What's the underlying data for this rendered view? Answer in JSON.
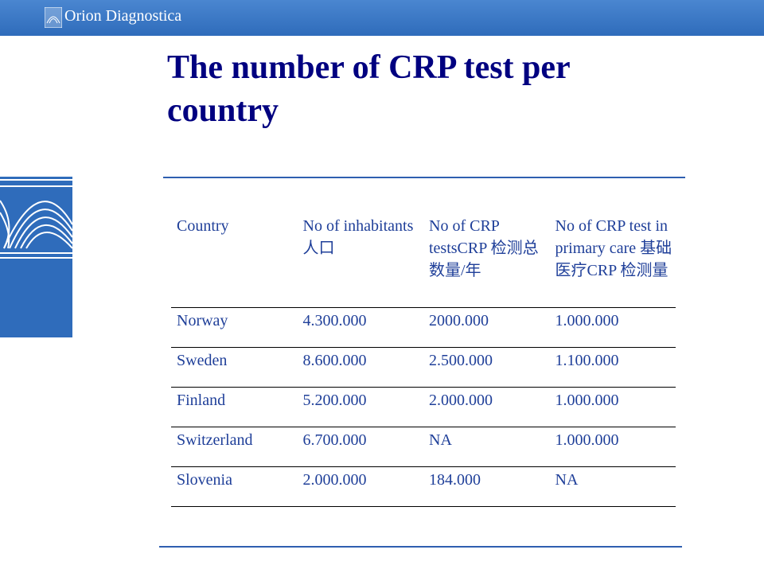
{
  "header": {
    "logo": "Orion Diagnostica"
  },
  "title": "The number of CRP test per country",
  "table": {
    "columns": [
      "Country",
      "No of inhabitants 人口",
      "No of CRP testsCRP 检测总数量/年",
      "No of CRP test in primary care 基础医疗CRP 检测量"
    ],
    "rows": [
      [
        "Norway",
        "4.300.000",
        "2000.000",
        "1.000.000"
      ],
      [
        "Sweden",
        "8.600.000",
        "2.500.000",
        "1.100.000"
      ],
      [
        "Finland",
        "5.200.000",
        "2.000.000",
        "1.000.000"
      ],
      [
        "Switzerland",
        "6.700.000",
        "NA",
        "1.000.000"
      ],
      [
        "Slovenia",
        "2.000.000",
        "184.000",
        "NA"
      ]
    ]
  }
}
